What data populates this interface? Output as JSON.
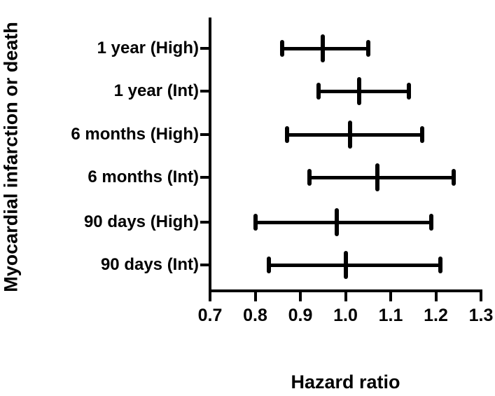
{
  "figure": {
    "background_color": "#ffffff",
    "ink_color": "#000000"
  },
  "chart_data": {
    "type": "scatter",
    "subtype": "forest-plot",
    "title": "",
    "xlabel": "Hazard ratio",
    "ylabel": "Myocardial infarction or death",
    "xlim": [
      0.7,
      1.3
    ],
    "xticks": [
      "0.7",
      "0.8",
      "0.9",
      "1.0",
      "1.1",
      "1.2",
      "1.3"
    ],
    "grid": false,
    "legend": "none",
    "categories": [
      "1 year (High)",
      "1 year (Int)",
      "6 months (High)",
      "6 months (Int)",
      "90 days (High)",
      "90 days (Int)"
    ],
    "rows": [
      {
        "label": "1 year (High)",
        "hazard_ratio": 0.95,
        "ci_low": 0.86,
        "ci_high": 1.05
      },
      {
        "label": "1 year (Int)",
        "hazard_ratio": 1.03,
        "ci_low": 0.94,
        "ci_high": 1.14
      },
      {
        "label": "6 months (High)",
        "hazard_ratio": 1.01,
        "ci_low": 0.87,
        "ci_high": 1.17
      },
      {
        "label": "6 months (Int)",
        "hazard_ratio": 1.07,
        "ci_low": 0.92,
        "ci_high": 1.24
      },
      {
        "label": "90 days (High)",
        "hazard_ratio": 0.98,
        "ci_low": 0.8,
        "ci_high": 1.19
      },
      {
        "label": "90 days (Int)",
        "hazard_ratio": 1.0,
        "ci_low": 0.83,
        "ci_high": 1.21
      }
    ]
  }
}
